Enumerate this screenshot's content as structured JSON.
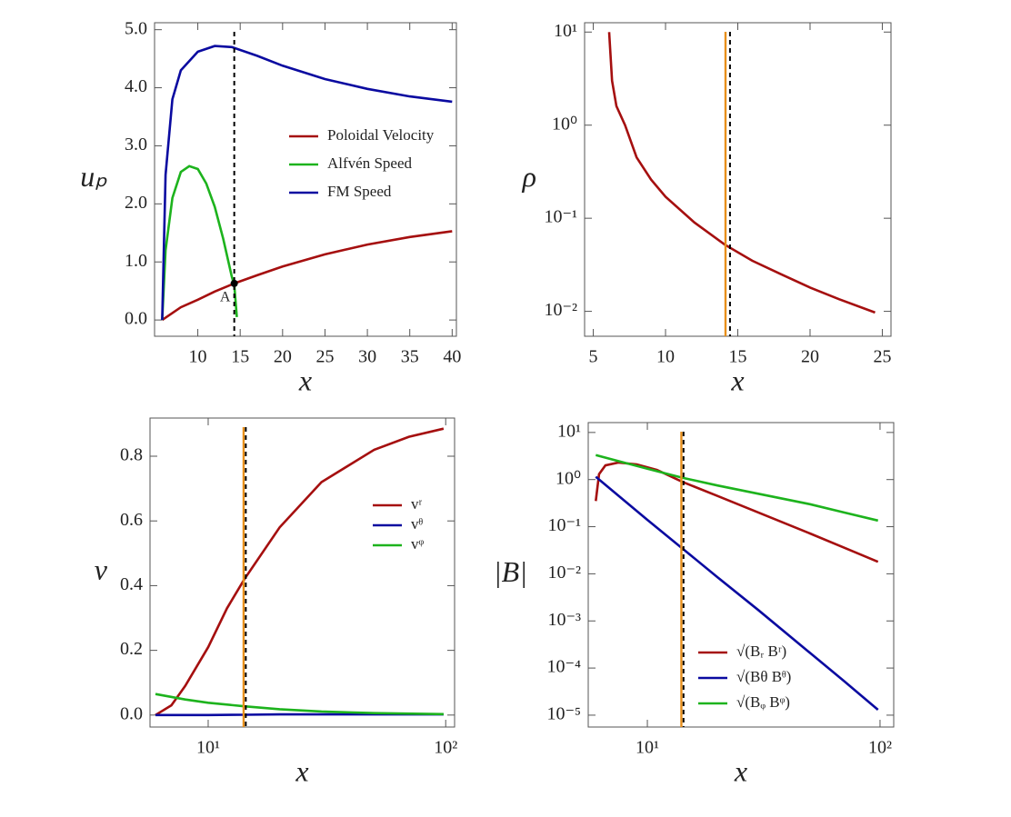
{
  "chart_data": [
    {
      "type": "line",
      "x_label": "x",
      "y_label": "uₚ",
      "xlim": [
        4.9,
        40.5
      ],
      "ylim": [
        -0.28,
        5.12
      ],
      "xticks": [
        10,
        15,
        20,
        25,
        30,
        35,
        40
      ],
      "yticks": [
        {
          "value": 0,
          "label": "0.0"
        },
        {
          "value": 1,
          "label": "1.0"
        },
        {
          "value": 2,
          "label": "2.0"
        },
        {
          "value": 3,
          "label": "3.0"
        },
        {
          "value": 4,
          "label": "4.0"
        },
        {
          "value": 5,
          "label": "5.0"
        }
      ],
      "legend": "center right",
      "series": [
        {
          "name": "Poloidal Velocity",
          "color": "#a50f0f",
          "x": [
            5.8,
            7,
            8,
            10,
            12,
            14.3,
            17,
            20,
            25,
            30,
            35,
            40
          ],
          "values": [
            0,
            0.12,
            0.22,
            0.35,
            0.49,
            0.63,
            0.77,
            0.92,
            1.13,
            1.3,
            1.43,
            1.53
          ]
        },
        {
          "name": "Alfvén Speed",
          "color": "#1db31d",
          "x": [
            5.8,
            6.2,
            7,
            8,
            9,
            10,
            11,
            12,
            13,
            14,
            14.3,
            14.6
          ],
          "values": [
            0,
            1.2,
            2.1,
            2.55,
            2.65,
            2.6,
            2.35,
            1.95,
            1.4,
            0.75,
            0.6,
            0.05
          ]
        },
        {
          "name": "FM Speed",
          "color": "#0a0aa0",
          "x": [
            5.8,
            6.2,
            7,
            8,
            10,
            12,
            14,
            17,
            20,
            25,
            30,
            35,
            40
          ],
          "values": [
            0,
            2.5,
            3.8,
            4.3,
            4.62,
            4.72,
            4.7,
            4.55,
            4.38,
            4.15,
            3.98,
            3.85,
            3.76
          ]
        }
      ],
      "vlines": [
        {
          "x": 14.3,
          "color": "#000000",
          "dashed": true
        }
      ],
      "annotations": [
        {
          "x": 14.3,
          "y": 0.63,
          "text": "A"
        }
      ]
    },
    {
      "type": "line",
      "x_label": "x",
      "y_label": "ρ",
      "ylog": true,
      "xlim": [
        4.4,
        25.6
      ],
      "ylim": [
        0.0054,
        12.6
      ],
      "xticks": [
        5,
        10,
        15,
        20,
        25
      ],
      "yticks": [
        {
          "value": 0.01,
          "label": "10⁻²"
        },
        {
          "value": 0.1,
          "label": "10⁻¹"
        },
        {
          "value": 1,
          "label": "10⁰"
        },
        {
          "value": 10,
          "label": "10¹"
        }
      ],
      "series": [
        {
          "color": "#a50f0f",
          "x": [
            6.1,
            6.3,
            6.6,
            7.2,
            8,
            9,
            10,
            12,
            14.1,
            16,
            18,
            20,
            22,
            24.5
          ],
          "values": [
            10,
            3,
            1.6,
            1.0,
            0.45,
            0.26,
            0.17,
            0.09,
            0.052,
            0.035,
            0.025,
            0.018,
            0.0135,
            0.0097
          ]
        }
      ],
      "vlines": [
        {
          "x": 14.15,
          "color": "#e8901c",
          "dashed": false
        },
        {
          "x": 14.46,
          "color": "#000000",
          "dashed": true
        }
      ]
    },
    {
      "type": "line",
      "x_label": "x",
      "y_label": "v",
      "xlog": true,
      "xlim": [
        5.69,
        109
      ],
      "ylim": [
        -0.037,
        0.918
      ],
      "xticks": [
        {
          "value": 10,
          "label": "10¹"
        },
        {
          "value": 100,
          "label": "10²"
        }
      ],
      "yticks": [
        {
          "value": 0,
          "label": "0.0"
        },
        0.2,
        0.4,
        0.6,
        0.8
      ],
      "legend": "center right",
      "series": [
        {
          "name": "vʳ",
          "color": "#a50f0f",
          "x": [
            6,
            7,
            8,
            10,
            12,
            14.2,
            20,
            30,
            50,
            70,
            98
          ],
          "values": [
            0,
            0.03,
            0.09,
            0.21,
            0.33,
            0.42,
            0.58,
            0.72,
            0.82,
            0.86,
            0.885
          ]
        },
        {
          "name": "vᶿ",
          "color": "#0a0aa0",
          "x": [
            6,
            10,
            14.2,
            20,
            30,
            50,
            98
          ],
          "values": [
            0,
            0,
            0.001,
            0.002,
            0.002,
            0.002,
            0.002
          ]
        },
        {
          "name": "vᵠ",
          "color": "#1db31d",
          "x": [
            6,
            8,
            10,
            14.2,
            20,
            30,
            50,
            98
          ],
          "values": [
            0.065,
            0.048,
            0.038,
            0.027,
            0.018,
            0.011,
            0.006,
            0.003
          ]
        }
      ],
      "vlines": [
        {
          "x": 14.1,
          "color": "#e8901c",
          "dashed": false
        },
        {
          "x": 14.4,
          "color": "#000000",
          "dashed": true
        }
      ]
    },
    {
      "type": "line",
      "x_label": "x",
      "y_label": "|B|",
      "xlog": true,
      "ylog": true,
      "xlim": [
        5.57,
        114.5
      ],
      "ylim": [
        5.6e-06,
        16.2
      ],
      "xticks": [
        {
          "value": 10,
          "label": "10¹"
        },
        {
          "value": 100,
          "label": "10²"
        }
      ],
      "yticks": [
        {
          "value": 1e-05,
          "label": "10⁻⁵"
        },
        {
          "value": 0.0001,
          "label": "10⁻⁴"
        },
        {
          "value": 0.001,
          "label": "10⁻³"
        },
        {
          "value": 0.01,
          "label": "10⁻²"
        },
        {
          "value": 0.1,
          "label": "10⁻¹"
        },
        {
          "value": 1,
          "label": "10⁰"
        },
        {
          "value": 10,
          "label": "10¹"
        }
      ],
      "legend": "lower center",
      "series": [
        {
          "name": "√(Bᵣ Bʳ)",
          "color": "#a50f0f",
          "x": [
            6,
            6.2,
            6.6,
            7.5,
            9,
            11,
            14.1,
            20,
            30,
            50,
            70,
            98
          ],
          "values": [
            0.35,
            1.3,
            2.0,
            2.3,
            2.1,
            1.6,
            0.9,
            0.45,
            0.2,
            0.072,
            0.036,
            0.018
          ]
        },
        {
          "name": "√(Bθ Bᶿ)",
          "color": "#0a0aa0",
          "x": [
            6,
            10,
            14.1,
            20,
            30,
            50,
            70,
            98
          ],
          "values": [
            1.15,
            0.14,
            0.035,
            0.0085,
            0.0017,
            0.00021,
            5.3e-05,
            1.3e-05
          ]
        },
        {
          "name": "√(Bᵩ Bᵠ)",
          "color": "#1db31d",
          "x": [
            6,
            10,
            14.1,
            20,
            30,
            50,
            70,
            98
          ],
          "values": [
            3.3,
            1.7,
            1.1,
            0.75,
            0.5,
            0.3,
            0.2,
            0.135
          ]
        }
      ],
      "vlines": [
        {
          "x": 14.0,
          "color": "#e8901c",
          "dashed": false
        },
        {
          "x": 14.3,
          "color": "#000000",
          "dashed": true
        }
      ]
    }
  ]
}
